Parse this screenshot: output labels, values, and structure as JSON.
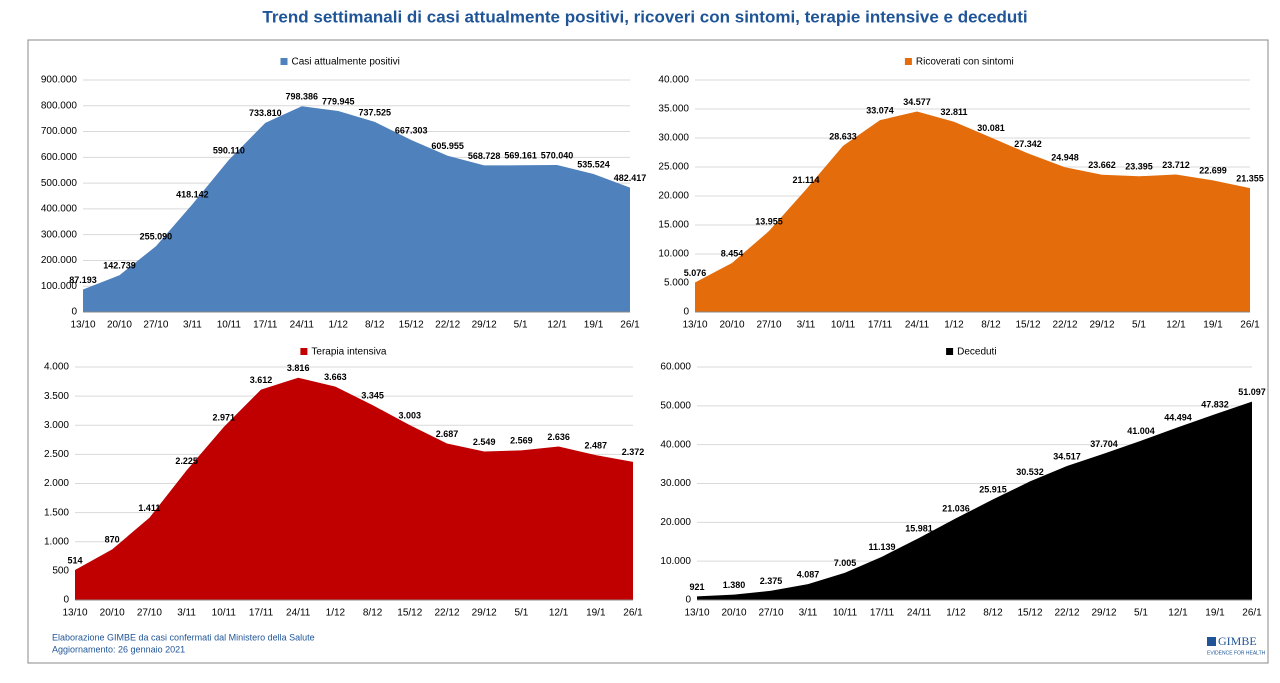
{
  "title": "Trend settimanali di casi attualmente positivi, ricoveri con sintomi, terapie intensive e deceduti",
  "source": [
    "Elaborazione GIMBE da casi confermati dal Ministero della Salute",
    "Aggiornamento: 26 gennaio 2021"
  ],
  "logo": {
    "name": "GIMBE",
    "tagline": "EVIDENCE FOR HEALTH"
  },
  "chart_data": [
    {
      "type": "area",
      "categories": [
        "13/10",
        "20/10",
        "27/10",
        "3/11",
        "10/11",
        "17/11",
        "24/11",
        "1/12",
        "8/12",
        "15/12",
        "22/12",
        "29/12",
        "5/1",
        "12/1",
        "19/1",
        "26/1"
      ],
      "series": [
        {
          "name": "Casi attualmente positivi",
          "color": "#4f81bd",
          "values": [
            87193,
            142739,
            255090,
            418142,
            590110,
            733810,
            798386,
            779945,
            737525,
            667303,
            605955,
            568728,
            569161,
            570040,
            535524,
            482417
          ],
          "value_labels": [
            "87.193",
            "142.739",
            "255.090",
            "418.142",
            "590.110",
            "733.810",
            "798.386",
            "779.945",
            "737.525",
            "667.303",
            "605.955",
            "568.728",
            "569.161",
            "570.040",
            "535.524",
            "482.417"
          ]
        }
      ],
      "ylim": [
        0,
        900000
      ],
      "yticks": [
        0,
        {
          "value": 100000,
          "label": "100.000"
        },
        {
          "value": 200000,
          "label": "200.000"
        },
        {
          "value": 300000,
          "label": "300.000"
        },
        {
          "value": 400000,
          "label": "400.000"
        },
        {
          "value": 500000,
          "label": "500.000"
        },
        {
          "value": 600000,
          "label": "600.000"
        },
        {
          "value": 700000,
          "label": "700.000"
        },
        {
          "value": 800000,
          "label": "800.000"
        },
        {
          "value": 900000,
          "label": "900.000"
        }
      ],
      "grid": true
    },
    {
      "type": "area",
      "categories": [
        "13/10",
        "20/10",
        "27/10",
        "3/11",
        "10/11",
        "17/11",
        "24/11",
        "1/12",
        "8/12",
        "15/12",
        "22/12",
        "29/12",
        "5/1",
        "12/1",
        "19/1",
        "26/1"
      ],
      "series": [
        {
          "name": "Ricoverati con sintomi",
          "color": "#e46c0a",
          "values": [
            5076,
            8454,
            13955,
            21114,
            28633,
            33074,
            34577,
            32811,
            30081,
            27342,
            24948,
            23662,
            23395,
            23712,
            22699,
            21355
          ],
          "value_labels": [
            "5.076",
            "8.454",
            "13.955",
            "21.114",
            "28.633",
            "33.074",
            "34.577",
            "32.811",
            "30.081",
            "27.342",
            "24.948",
            "23.662",
            "23.395",
            "23.712",
            "22.699",
            "21.355"
          ]
        }
      ],
      "ylim": [
        0,
        40000
      ],
      "yticks": [
        0,
        {
          "value": 5000,
          "label": "5.000"
        },
        {
          "value": 10000,
          "label": "10.000"
        },
        {
          "value": 15000,
          "label": "15.000"
        },
        {
          "value": 20000,
          "label": "20.000"
        },
        {
          "value": 25000,
          "label": "25.000"
        },
        {
          "value": 30000,
          "label": "30.000"
        },
        {
          "value": 35000,
          "label": "35.000"
        },
        {
          "value": 40000,
          "label": "40.000"
        }
      ],
      "grid": true
    },
    {
      "type": "area",
      "categories": [
        "13/10",
        "20/10",
        "27/10",
        "3/11",
        "10/11",
        "17/11",
        "24/11",
        "1/12",
        "8/12",
        "15/12",
        "22/12",
        "29/12",
        "5/1",
        "12/1",
        "19/1",
        "26/1"
      ],
      "series": [
        {
          "name": "Terapia intensiva",
          "color": "#c00000",
          "values": [
            514,
            870,
            1411,
            2225,
            2971,
            3612,
            3816,
            3663,
            3345,
            3003,
            2687,
            2549,
            2569,
            2636,
            2487,
            2372
          ],
          "value_labels": [
            "514",
            "870",
            "1.411",
            "2.225",
            "2.971",
            "3.612",
            "3.816",
            "3.663",
            "3.345",
            "3.003",
            "2.687",
            "2.549",
            "2.569",
            "2.636",
            "2.487",
            "2.372"
          ]
        }
      ],
      "ylim": [
        0,
        4000
      ],
      "yticks": [
        0,
        500,
        {
          "value": 1000,
          "label": "1.000"
        },
        {
          "value": 1500,
          "label": "1.500"
        },
        {
          "value": 2000,
          "label": "2.000"
        },
        {
          "value": 2500,
          "label": "2.500"
        },
        {
          "value": 3000,
          "label": "3.000"
        },
        {
          "value": 3500,
          "label": "3.500"
        },
        {
          "value": 4000,
          "label": "4.000"
        }
      ],
      "grid": true
    },
    {
      "type": "area",
      "categories": [
        "13/10",
        "20/10",
        "27/10",
        "3/11",
        "10/11",
        "17/11",
        "24/11",
        "1/12",
        "8/12",
        "15/12",
        "22/12",
        "29/12",
        "5/1",
        "12/1",
        "19/1",
        "26/1"
      ],
      "series": [
        {
          "name": "Deceduti",
          "color": "#000000",
          "values": [
            921,
            1380,
            2375,
            4087,
            7005,
            11139,
            15981,
            21036,
            25915,
            30532,
            34517,
            37704,
            41004,
            44494,
            47832,
            51097
          ],
          "value_labels": [
            "921",
            "1.380",
            "2.375",
            "4.087",
            "7.005",
            "11.139",
            "15.981",
            "21.036",
            "25.915",
            "30.532",
            "34.517",
            "37.704",
            "41.004",
            "44.494",
            "47.832",
            "51.097"
          ]
        }
      ],
      "ylim": [
        0,
        60000
      ],
      "yticks": [
        0,
        {
          "value": 10000,
          "label": "10.000"
        },
        {
          "value": 20000,
          "label": "20.000"
        },
        {
          "value": 30000,
          "label": "30.000"
        },
        {
          "value": 40000,
          "label": "40.000"
        },
        {
          "value": 50000,
          "label": "50.000"
        },
        {
          "value": 60000,
          "label": "60.000"
        }
      ],
      "grid": true
    }
  ]
}
